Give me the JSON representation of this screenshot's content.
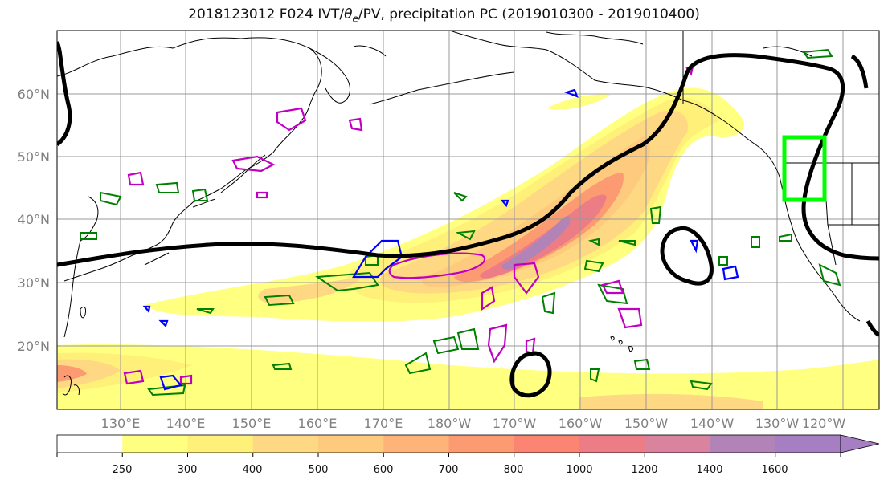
{
  "title": "2018123012 F024 IVT/θe/PV, precipitation PC (2019010300 - 2019010400)",
  "map": {
    "lat_labels": [
      "20°N",
      "30°N",
      "40°N",
      "50°N",
      "60°N"
    ],
    "lon_labels": [
      "130°E",
      "140°E",
      "150°E",
      "160°E",
      "170°E",
      "180°W",
      "170°W",
      "160°W",
      "150°W",
      "140°W",
      "130°W",
      "120°W"
    ]
  },
  "colorbar": {
    "levels": [
      "250",
      "300",
      "400",
      "500",
      "600",
      "700",
      "800",
      "1000",
      "1200",
      "1400",
      "1600"
    ],
    "colors": [
      "#ffffff",
      "#ffff80",
      "#fff07a",
      "#fed883",
      "#feca7d",
      "#feb478",
      "#fc9a72",
      "#fb8473",
      "#ec7d86",
      "#d9839e",
      "#b183b7",
      "#a67fc3"
    ]
  },
  "colors": {
    "ivt_jet": "#000000",
    "theta_e": "#008000",
    "pv_magenta": "#c000c0",
    "pv_blue": "#0000ff",
    "target_box": "#00ff00"
  }
}
